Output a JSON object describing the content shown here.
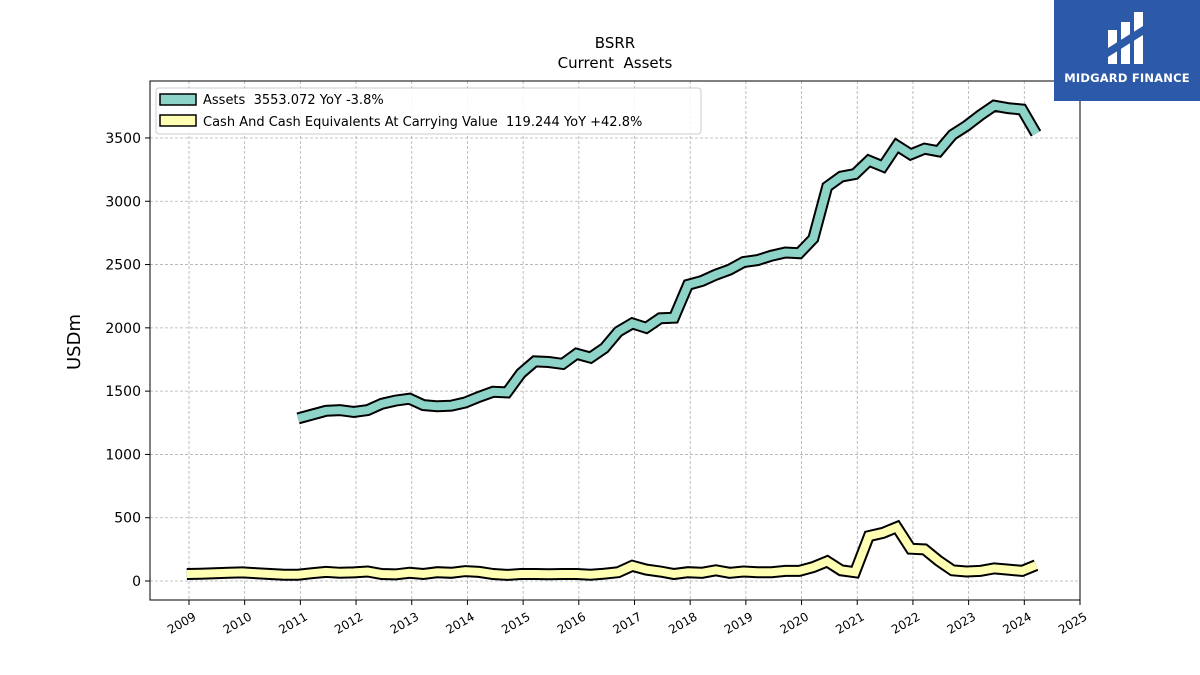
{
  "logo": {
    "text": "MIDGARD FINANCE",
    "background": "#2d5aa8"
  },
  "chart_data": {
    "type": "line",
    "title": "BSRR",
    "subtitle": "Current  Assets",
    "ylabel": "USDm",
    "xlabel": "",
    "ylim": [
      -150,
      3950
    ],
    "yticks": [
      0,
      500,
      1000,
      1500,
      2000,
      2500,
      3000,
      3500
    ],
    "xlim": [
      2008.3,
      2025.0
    ],
    "xticks": [
      "2009",
      "2010",
      "2011",
      "2012",
      "2013",
      "2014",
      "2015",
      "2016",
      "2017",
      "2018",
      "2019",
      "2020",
      "2021",
      "2022",
      "2023",
      "2024",
      "2025"
    ],
    "grid": true,
    "legend_position": "top-left",
    "series": [
      {
        "name": "Assets  3553.072 YoY -3.8%",
        "color": "#8dd3c7",
        "points": [
          [
            2010.96,
            1285
          ],
          [
            2011.21,
            1315
          ],
          [
            2011.46,
            1345
          ],
          [
            2011.71,
            1350
          ],
          [
            2011.96,
            1335
          ],
          [
            2012.21,
            1350
          ],
          [
            2012.46,
            1400
          ],
          [
            2012.71,
            1425
          ],
          [
            2012.96,
            1440
          ],
          [
            2013.21,
            1390
          ],
          [
            2013.46,
            1380
          ],
          [
            2013.71,
            1385
          ],
          [
            2013.96,
            1410
          ],
          [
            2014.21,
            1455
          ],
          [
            2014.46,
            1495
          ],
          [
            2014.71,
            1490
          ],
          [
            2014.96,
            1640
          ],
          [
            2015.21,
            1735
          ],
          [
            2015.46,
            1730
          ],
          [
            2015.71,
            1715
          ],
          [
            2015.96,
            1795
          ],
          [
            2016.21,
            1765
          ],
          [
            2016.46,
            1840
          ],
          [
            2016.71,
            1970
          ],
          [
            2016.96,
            2035
          ],
          [
            2017.21,
            2000
          ],
          [
            2017.46,
            2075
          ],
          [
            2017.71,
            2080
          ],
          [
            2017.96,
            2340
          ],
          [
            2018.21,
            2370
          ],
          [
            2018.46,
            2420
          ],
          [
            2018.71,
            2460
          ],
          [
            2018.96,
            2520
          ],
          [
            2019.21,
            2535
          ],
          [
            2019.46,
            2570
          ],
          [
            2019.71,
            2595
          ],
          [
            2019.96,
            2590
          ],
          [
            2020.21,
            2705
          ],
          [
            2020.46,
            3115
          ],
          [
            2020.71,
            3195
          ],
          [
            2020.96,
            3215
          ],
          [
            2021.21,
            3320
          ],
          [
            2021.46,
            3275
          ],
          [
            2021.71,
            3440
          ],
          [
            2021.96,
            3370
          ],
          [
            2022.21,
            3415
          ],
          [
            2022.46,
            3395
          ],
          [
            2022.71,
            3525
          ],
          [
            2022.96,
            3595
          ],
          [
            2023.21,
            3680
          ],
          [
            2023.46,
            3755
          ],
          [
            2023.71,
            3735
          ],
          [
            2023.96,
            3725
          ],
          [
            2024.21,
            3535
          ]
        ]
      },
      {
        "name": "Cash And Cash Equivalents At Carrying Value  119.244 YoY +42.8%",
        "color": "#ffffb3",
        "points": [
          [
            2008.96,
            55
          ],
          [
            2009.21,
            58
          ],
          [
            2009.46,
            62
          ],
          [
            2009.71,
            65
          ],
          [
            2009.96,
            68
          ],
          [
            2010.21,
            62
          ],
          [
            2010.46,
            55
          ],
          [
            2010.71,
            50
          ],
          [
            2010.96,
            50
          ],
          [
            2011.21,
            62
          ],
          [
            2011.46,
            72
          ],
          [
            2011.71,
            65
          ],
          [
            2011.96,
            68
          ],
          [
            2012.21,
            75
          ],
          [
            2012.46,
            55
          ],
          [
            2012.71,
            52
          ],
          [
            2012.96,
            65
          ],
          [
            2013.21,
            55
          ],
          [
            2013.46,
            70
          ],
          [
            2013.71,
            65
          ],
          [
            2013.96,
            78
          ],
          [
            2014.21,
            72
          ],
          [
            2014.46,
            55
          ],
          [
            2014.71,
            48
          ],
          [
            2014.96,
            55
          ],
          [
            2015.21,
            55
          ],
          [
            2015.46,
            53
          ],
          [
            2015.71,
            55
          ],
          [
            2015.96,
            55
          ],
          [
            2016.21,
            50
          ],
          [
            2016.46,
            58
          ],
          [
            2016.71,
            70
          ],
          [
            2016.96,
            120
          ],
          [
            2017.21,
            90
          ],
          [
            2017.46,
            75
          ],
          [
            2017.71,
            55
          ],
          [
            2017.96,
            70
          ],
          [
            2018.21,
            65
          ],
          [
            2018.46,
            85
          ],
          [
            2018.71,
            65
          ],
          [
            2018.96,
            75
          ],
          [
            2019.21,
            70
          ],
          [
            2019.46,
            70
          ],
          [
            2019.71,
            80
          ],
          [
            2019.96,
            80
          ],
          [
            2020.21,
            110
          ],
          [
            2020.46,
            155
          ],
          [
            2020.71,
            85
          ],
          [
            2020.96,
            70
          ],
          [
            2021.21,
            355
          ],
          [
            2021.46,
            380
          ],
          [
            2021.71,
            425
          ],
          [
            2021.96,
            255
          ],
          [
            2022.21,
            250
          ],
          [
            2022.46,
            160
          ],
          [
            2022.71,
            85
          ],
          [
            2022.96,
            75
          ],
          [
            2023.21,
            80
          ],
          [
            2023.46,
            100
          ],
          [
            2023.71,
            90
          ],
          [
            2023.96,
            80
          ],
          [
            2024.21,
            125
          ]
        ]
      }
    ]
  }
}
